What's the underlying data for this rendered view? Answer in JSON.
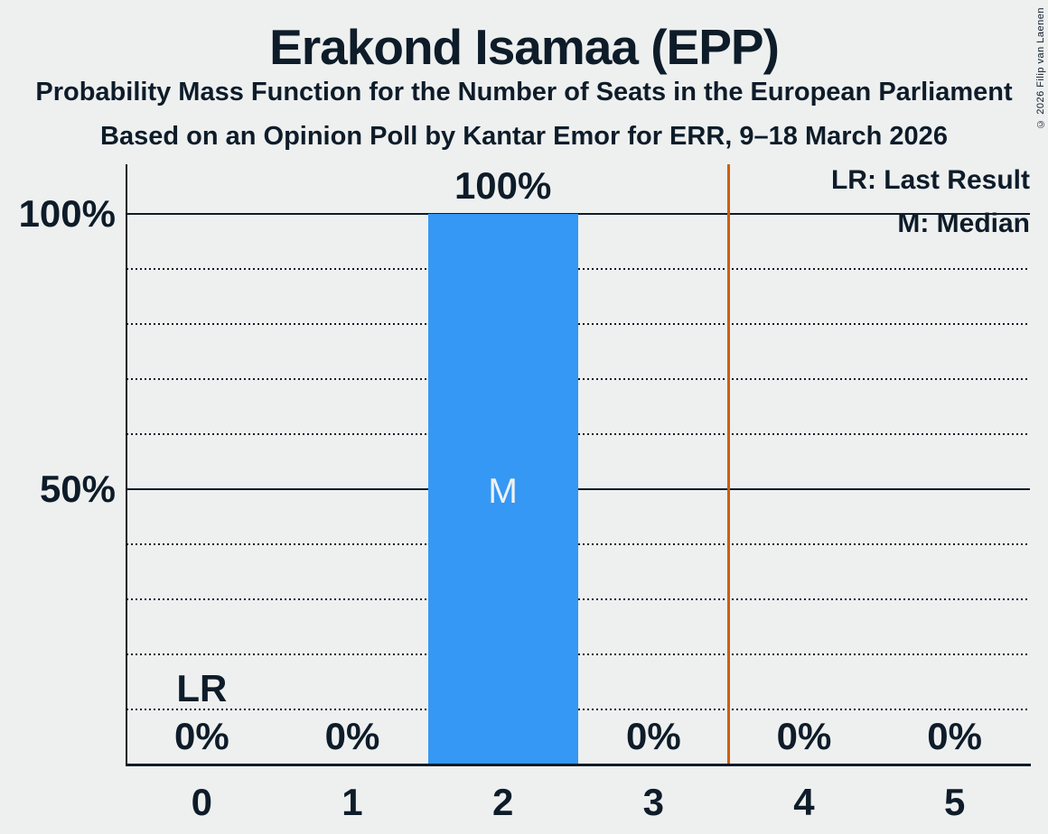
{
  "meta": {
    "copyright": "© 2026 Filip van Laenen"
  },
  "header": {
    "title": "Erakond Isamaa (EPP)",
    "subtitle1": "Probability Mass Function for the Number of Seats in the European Parliament",
    "subtitle2": "Based on an Opinion Poll by Kantar Emor for ERR, 9–18 March 2026"
  },
  "legend": {
    "last_result": "LR: Last Result",
    "median": "M: Median"
  },
  "chart_data": {
    "type": "bar",
    "title": "Erakond Isamaa (EPP)",
    "categories": [
      "0",
      "1",
      "2",
      "3",
      "4",
      "5"
    ],
    "values": [
      0,
      0,
      100,
      0,
      0,
      0
    ],
    "value_labels": [
      "0%",
      "0%",
      "100%",
      "0%",
      "0%",
      "0%"
    ],
    "y_ticks": [
      {
        "label": "100%",
        "value": 100
      },
      {
        "label": "50%",
        "value": 50
      }
    ],
    "ylim": [
      0,
      109
    ],
    "dotted_gridlines_pct": [
      10,
      20,
      30,
      40,
      60,
      70,
      80,
      90
    ],
    "solid_gridlines_pct": [
      50,
      100
    ],
    "median_category": "2",
    "median_marker": "M",
    "last_result_category": "0",
    "last_result_marker": "LR",
    "majority_line_between": 3.5,
    "legend_position": "top-right",
    "colors": {
      "background": "#eef0f0",
      "foreground": "#0e1c29",
      "bar": "#3598f4",
      "bar_text": "#eff1f1",
      "majority_line": "#d05e00"
    }
  }
}
